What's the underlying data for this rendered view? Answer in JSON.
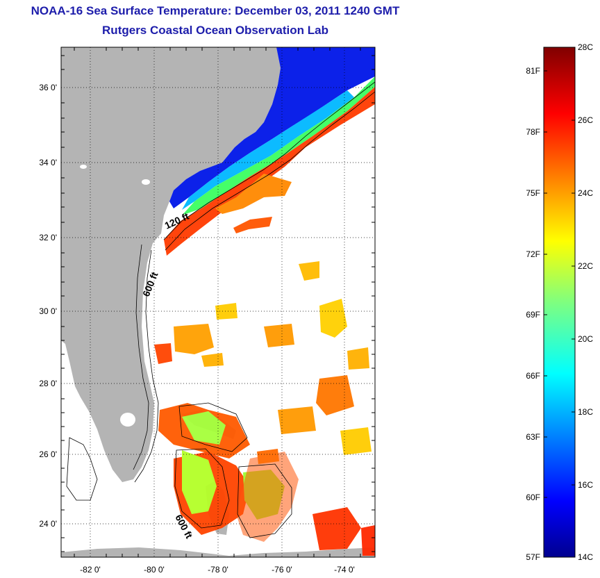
{
  "header": {
    "title": "NOAA-16 Sea Surface Temperature:  December 03, 2011 1240 GMT",
    "subtitle": "Rutgers Coastal Ocean Observation Lab"
  },
  "map": {
    "lat_labels": [
      "36 0'",
      "34 0'",
      "32 0'",
      "30 0'",
      "28 0'",
      "26 0'",
      "24 0'"
    ],
    "lon_labels": [
      "-82 0'",
      "-80 0'",
      "-78 0'",
      "-76 0'",
      "-74 0'"
    ],
    "lat_range": [
      23,
      37
    ],
    "lon_range": [
      -83,
      -73
    ],
    "contour_labels": [
      "120 ft",
      "600 ft",
      "600 ft"
    ],
    "colors": {
      "land": "#b4b4b4",
      "grid": "#000000",
      "no_data": "#ffffff"
    }
  },
  "colorbar": {
    "fahrenheit_labels": [
      "81F",
      "78F",
      "75F",
      "72F",
      "69F",
      "66F",
      "63F",
      "60F",
      "57F"
    ],
    "celsius_labels": [
      "28C",
      "26C",
      "24C",
      "22C",
      "20C",
      "18C",
      "16C",
      "14C"
    ],
    "range_c": [
      14,
      28
    ],
    "colormap": "jet"
  }
}
